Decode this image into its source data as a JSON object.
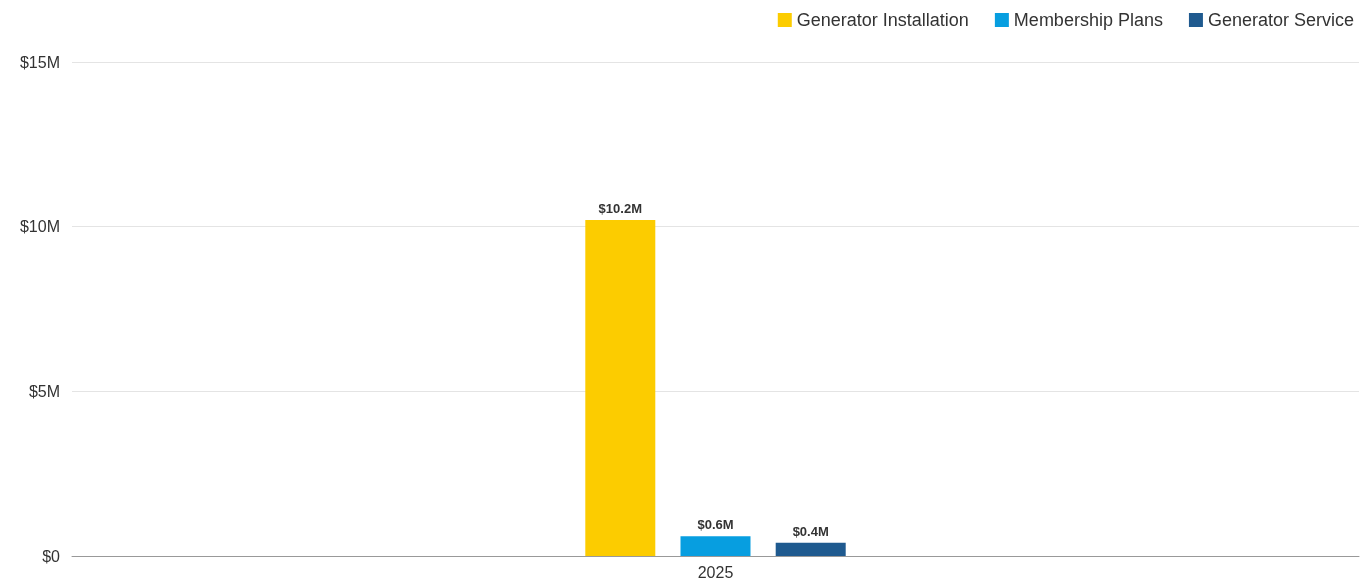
{
  "chart_data": {
    "type": "bar",
    "categories": [
      "2025"
    ],
    "series": [
      {
        "name": "Generator Installation",
        "color": "#fccc00",
        "values": [
          10.2
        ],
        "value_labels": [
          "$10.2M"
        ]
      },
      {
        "name": "Membership Plans",
        "color": "#079ee0",
        "values": [
          0.6
        ],
        "value_labels": [
          "$0.6M"
        ]
      },
      {
        "name": "Generator Service",
        "color": "#1f5a8f",
        "values": [
          0.4
        ],
        "value_labels": [
          "$0.4M"
        ]
      }
    ],
    "ylim": [
      0,
      15
    ],
    "yticks": [
      {
        "value": 0,
        "label": "$0"
      },
      {
        "value": 5,
        "label": "$5M"
      },
      {
        "value": 10,
        "label": "$10M"
      },
      {
        "value": 15,
        "label": "$15M"
      }
    ],
    "grid": "y",
    "legend": "top right"
  }
}
